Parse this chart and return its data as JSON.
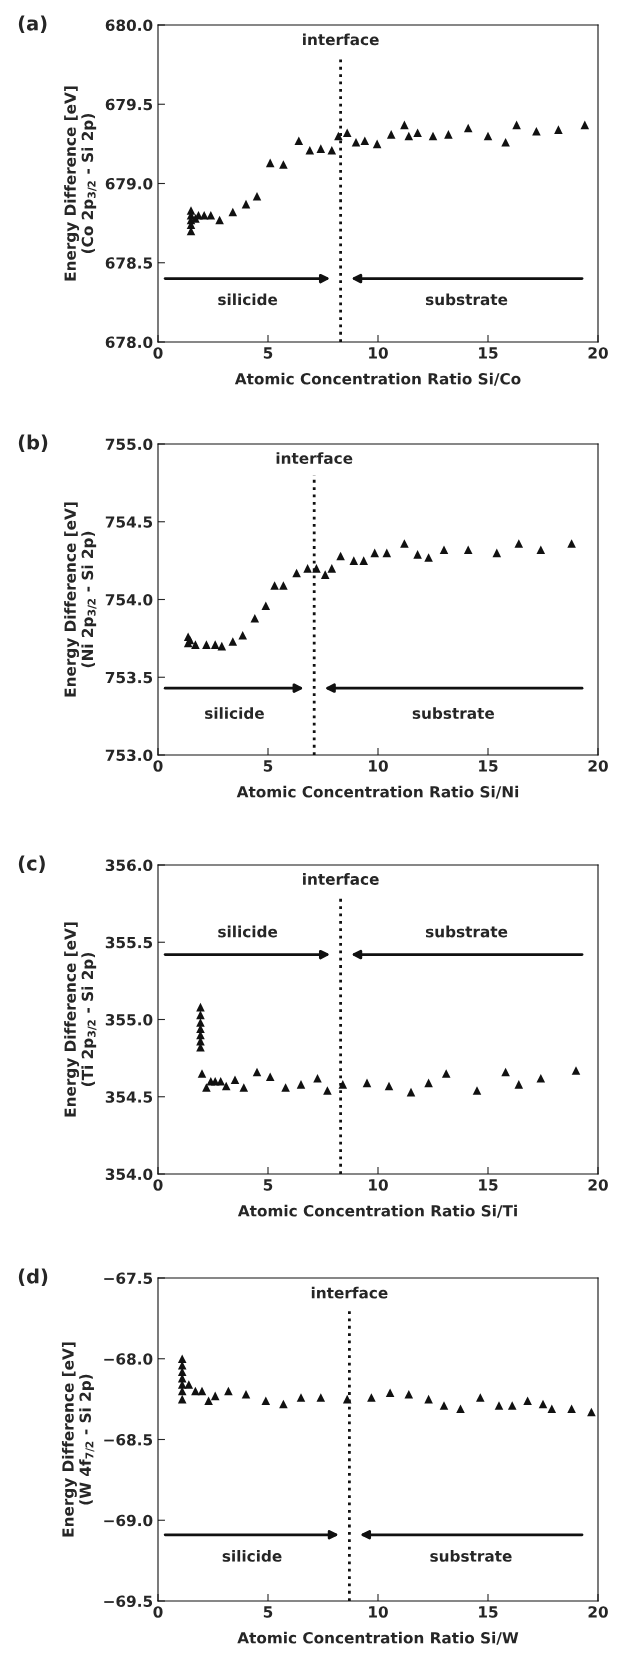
{
  "chart_data": [
    {
      "type": "scatter",
      "title": "(a)",
      "xlabel": "Atomic Concentration Ratio Si/Co",
      "ylabel": "Energy Difference [eV]\n(Co 2p$_{3/2}$ - Si 2p)",
      "x": [
        1.5,
        1.5,
        1.5,
        1.5,
        1.5,
        1.7,
        1.84,
        2.1,
        2.4,
        2.8,
        3.4,
        4.0,
        4.5,
        5.1,
        5.7,
        6.4,
        6.9,
        7.4,
        7.9,
        8.2,
        8.6,
        9.0,
        9.4,
        9.96,
        10.6,
        11.2,
        11.4,
        11.8,
        12.5,
        13.2,
        14.1,
        15.0,
        15.8,
        16.3,
        17.2,
        18.2,
        19.4
      ],
      "values": [
        678.83,
        678.8,
        678.77,
        678.74,
        678.7,
        678.78,
        678.8,
        678.8,
        678.8,
        678.77,
        678.82,
        678.87,
        678.92,
        679.13,
        679.12,
        679.27,
        679.21,
        679.22,
        679.21,
        679.3,
        679.32,
        679.26,
        679.27,
        679.25,
        679.31,
        679.37,
        679.3,
        679.32,
        679.3,
        679.31,
        679.35,
        679.3,
        679.26,
        679.37,
        679.33,
        679.34,
        679.37
      ],
      "color": "#111111",
      "marker": "triangle",
      "grid": false,
      "xlim": [
        0,
        20
      ],
      "xticks": [
        0,
        5,
        10,
        15,
        20
      ],
      "ylim": [
        678.0,
        680.0
      ],
      "yticks": [
        {
          "value": 678,
          "label": "678.0"
        },
        678.5,
        {
          "value": 679,
          "label": "679.0"
        },
        679.5,
        {
          "value": 680,
          "label": "680.0"
        }
      ],
      "ref_lines": [
        {
          "axis": "x",
          "value": 8.3,
          "line_style": "dotted",
          "color": "#111111"
        }
      ],
      "annotations": [
        "interface",
        "silicide",
        "substrate"
      ]
    },
    {
      "type": "scatter",
      "title": "(b)",
      "xlabel": "Atomic Concentration Ratio Si/Ni",
      "ylabel": "Energy Difference [eV]\n(Ni 2p$_{3/2}$ - Si 2p)",
      "x": [
        1.37,
        1.37,
        1.45,
        1.7,
        2.2,
        2.6,
        2.9,
        3.4,
        3.85,
        4.4,
        4.9,
        5.3,
        5.7,
        6.3,
        6.8,
        7.2,
        7.6,
        7.9,
        8.3,
        8.9,
        9.35,
        9.85,
        10.4,
        11.2,
        11.8,
        12.3,
        13.0,
        14.1,
        15.4,
        16.4,
        17.4,
        18.8
      ],
      "values": [
        753.76,
        753.72,
        753.74,
        753.71,
        753.71,
        753.71,
        753.7,
        753.73,
        753.77,
        753.88,
        753.96,
        754.09,
        754.09,
        754.17,
        754.2,
        754.2,
        754.16,
        754.2,
        754.28,
        754.25,
        754.25,
        754.3,
        754.3,
        754.36,
        754.29,
        754.27,
        754.32,
        754.32,
        754.3,
        754.36,
        754.32,
        754.36
      ],
      "color": "#111111",
      "marker": "triangle",
      "grid": false,
      "xlim": [
        0,
        20
      ],
      "xticks": [
        0,
        5,
        10,
        15,
        20
      ],
      "ylim": [
        753.0,
        755.0
      ],
      "yticks": [
        {
          "value": 753,
          "label": "753.0"
        },
        753.5,
        {
          "value": 754,
          "label": "754.0"
        },
        754.5,
        {
          "value": 755,
          "label": "755.0"
        }
      ],
      "ref_lines": [
        {
          "axis": "x",
          "value": 7.1,
          "line_style": "dotted",
          "color": "#111111"
        }
      ],
      "annotations": [
        "interface",
        "silicide",
        "substrate"
      ]
    },
    {
      "type": "scatter",
      "title": "(c)",
      "xlabel": "Atomic Concentration Ratio Si/Ti",
      "ylabel": "Energy Difference [eV]\n(Ti 2p$_{3/2}$ - Si 2p)",
      "x": [
        1.93,
        1.93,
        1.93,
        1.93,
        1.93,
        1.93,
        1.93,
        2.0,
        2.2,
        2.4,
        2.6,
        2.85,
        3.1,
        3.5,
        3.9,
        4.5,
        5.1,
        5.8,
        6.5,
        7.25,
        7.7,
        8.4,
        9.5,
        10.5,
        11.5,
        12.3,
        13.1,
        14.5,
        15.8,
        16.4,
        17.4,
        19.0
      ],
      "values": [
        355.08,
        355.03,
        354.98,
        354.94,
        354.9,
        354.86,
        354.82,
        354.65,
        354.56,
        354.6,
        354.6,
        354.6,
        354.57,
        354.61,
        354.56,
        354.66,
        354.63,
        354.56,
        354.58,
        354.62,
        354.54,
        354.58,
        354.59,
        354.57,
        354.53,
        354.59,
        354.65,
        354.54,
        354.66,
        354.58,
        354.62,
        354.67
      ],
      "color": "#111111",
      "marker": "triangle",
      "grid": false,
      "xlim": [
        0,
        20
      ],
      "xticks": [
        0,
        5,
        10,
        15,
        20
      ],
      "ylim": [
        354.0,
        356.0
      ],
      "yticks": [
        {
          "value": 354,
          "label": "354.0"
        },
        354.5,
        {
          "value": 355,
          "label": "355.0"
        },
        355.5,
        {
          "value": 356,
          "label": "356.0"
        }
      ],
      "ref_lines": [
        {
          "axis": "x",
          "value": 8.3,
          "line_style": "dotted",
          "color": "#111111"
        }
      ],
      "annotations": [
        "interface",
        "silicide",
        "substrate"
      ]
    },
    {
      "type": "scatter",
      "title": "(d)",
      "xlabel": "Atomic Concentration Ratio Si/W",
      "ylabel": "Energy Difference [eV]\n(W 4f$_{7/2}$ - Si 2p)",
      "x": [
        1.1,
        1.1,
        1.1,
        1.1,
        1.1,
        1.1,
        1.1,
        1.4,
        1.7,
        2.0,
        2.3,
        2.6,
        3.2,
        4.0,
        4.9,
        5.7,
        6.5,
        7.4,
        8.6,
        9.7,
        10.55,
        11.4,
        12.3,
        13.0,
        13.75,
        14.65,
        15.5,
        16.1,
        16.8,
        17.5,
        17.9,
        18.8,
        19.7
      ],
      "values": [
        -68.0,
        -68.04,
        -68.08,
        -68.12,
        -68.16,
        -68.2,
        -68.25,
        -68.16,
        -68.2,
        -68.2,
        -68.26,
        -68.23,
        -68.2,
        -68.22,
        -68.26,
        -68.28,
        -68.24,
        -68.24,
        -68.25,
        -68.24,
        -68.21,
        -68.22,
        -68.25,
        -68.29,
        -68.31,
        -68.24,
        -68.29,
        -68.29,
        -68.26,
        -68.28,
        -68.31,
        -68.31,
        -68.33
      ],
      "color": "#111111",
      "marker": "triangle",
      "grid": false,
      "xlim": [
        0,
        20
      ],
      "xticks": [
        0,
        5,
        10,
        15,
        20
      ],
      "ylim": [
        -69.5,
        -67.5
      ],
      "yticks": [
        {
          "value": -69.5,
          "label": "−69.5"
        },
        {
          "value": -69.0,
          "label": "−69.0"
        },
        {
          "value": -68.5,
          "label": "−68.5"
        },
        {
          "value": -68.0,
          "label": "−68.0"
        },
        {
          "value": -67.5,
          "label": "−67.5"
        }
      ],
      "ref_lines": [
        {
          "axis": "x",
          "value": 8.7,
          "line_style": "dotted",
          "color": "#111111"
        }
      ],
      "annotations": [
        "interface",
        "silicide",
        "substrate"
      ]
    }
  ]
}
